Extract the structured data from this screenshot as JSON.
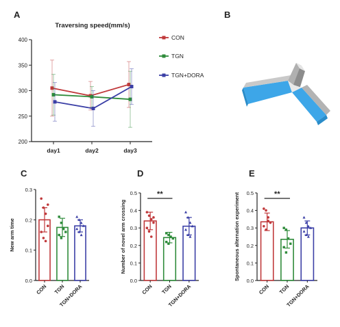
{
  "colors": {
    "CON": "#c0393b",
    "TGN": "#2e8b3a",
    "TGN+DORA": "#3b3fa6",
    "axis": "#222222"
  },
  "chart_data": [
    {
      "panel": "A",
      "type": "line",
      "title": "Traversing speed(mm/s)",
      "x": [
        "day1",
        "day2",
        "day3"
      ],
      "yticks": [
        200,
        250,
        300,
        350,
        400
      ],
      "ylim": [
        200,
        400
      ],
      "legend_position": "right",
      "series": [
        {
          "name": "CON",
          "values": [
            305,
            290,
            312
          ],
          "err": [
            55,
            28,
            45
          ]
        },
        {
          "name": "TGN",
          "values": [
            292,
            288,
            283
          ],
          "err": [
            40,
            20,
            55
          ]
        },
        {
          "name": "TGN+DORA",
          "values": [
            278,
            265,
            308
          ],
          "err": [
            38,
            35,
            35
          ]
        }
      ]
    },
    {
      "panel": "B",
      "type": "illustration",
      "description_visible": "Y-maze apparatus"
    },
    {
      "panel": "C",
      "type": "bar",
      "ylabel": "New arm time",
      "categories": [
        "CON",
        "TGN",
        "TGN+DORA"
      ],
      "values": [
        0.2,
        0.175,
        0.18
      ],
      "err": [
        0.04,
        0.03,
        0.02
      ],
      "yticks": [
        0.0,
        0.1,
        0.2,
        0.3
      ],
      "ylim": [
        0,
        0.3
      ],
      "points": [
        [
          0.27,
          0.24,
          0.22,
          0.18,
          0.16,
          0.14,
          0.13,
          0.25
        ],
        [
          0.21,
          0.19,
          0.17,
          0.16,
          0.15,
          0.14
        ],
        [
          0.21,
          0.2,
          0.19,
          0.18,
          0.17,
          0.16,
          0.15
        ]
      ]
    },
    {
      "panel": "D",
      "type": "bar",
      "ylabel": "Number of novel arm crossing",
      "categories": [
        "CON",
        "TGN",
        "TGN+DORA"
      ],
      "values": [
        0.34,
        0.245,
        0.31
      ],
      "err": [
        0.05,
        0.03,
        0.05
      ],
      "yticks": [
        0.0,
        0.1,
        0.2,
        0.3,
        0.4,
        0.5
      ],
      "ylim": [
        0,
        0.5
      ],
      "significance": {
        "between": [
          "CON",
          "TGN"
        ],
        "label": "**"
      },
      "points": [
        [
          0.39,
          0.37,
          0.35,
          0.33,
          0.3,
          0.28,
          0.25,
          0.36
        ],
        [
          0.27,
          0.26,
          0.25,
          0.24,
          0.22,
          0.21
        ],
        [
          0.39,
          0.36,
          0.33,
          0.31,
          0.29,
          0.26,
          0.25
        ]
      ]
    },
    {
      "panel": "E",
      "type": "bar",
      "ylabel": "Spontaneous alternation experiment",
      "categories": [
        "CON",
        "TGN",
        "TGN+DORA"
      ],
      "values": [
        0.335,
        0.235,
        0.3
      ],
      "err": [
        0.05,
        0.05,
        0.04
      ],
      "yticks": [
        0.0,
        0.1,
        0.2,
        0.3,
        0.4,
        0.5
      ],
      "ylim": [
        0,
        0.5
      ],
      "significance": {
        "between": [
          "CON",
          "TGN"
        ],
        "label": "**"
      },
      "points": [
        [
          0.41,
          0.4,
          0.36,
          0.33,
          0.31,
          0.29,
          0.34
        ],
        [
          0.3,
          0.29,
          0.24,
          0.21,
          0.19,
          0.16
        ],
        [
          0.36,
          0.33,
          0.31,
          0.3,
          0.28,
          0.26,
          0.25
        ]
      ]
    }
  ]
}
